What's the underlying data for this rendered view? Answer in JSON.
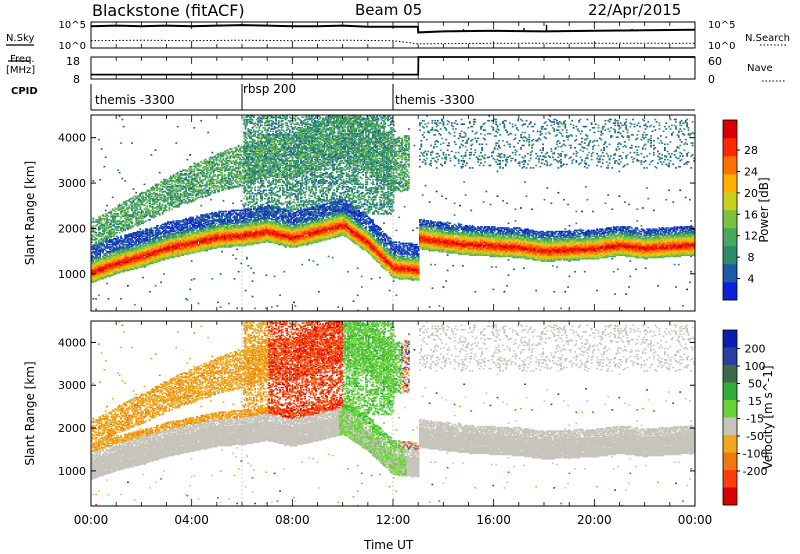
{
  "header": {
    "title": "Blackstone (fitACF)",
    "beam": "Beam 05",
    "date": "22/Apr/2015"
  },
  "left_labels": {
    "nsky": "N.Sky",
    "freq_line1": "Freq.",
    "freq_line2": "[MHz]",
    "cpid": "CPID"
  },
  "right_labels": {
    "nsearch": "N.Search",
    "nave": "Nave"
  },
  "colors": {
    "power_scale": [
      "#1020d8",
      "#1e58a8",
      "#2a8a6a",
      "#48a860",
      "#7cc040",
      "#c8d020",
      "#ffb000",
      "#ff7000",
      "#ff2800",
      "#d80000"
    ],
    "velocity_scale": [
      "#0a1fb0",
      "#2a3fa0",
      "#3c6a48",
      "#2fae3c",
      "#6ad23a",
      "#c7c4bc",
      "#f0a818",
      "#f07810",
      "#ff3c0c",
      "#d80000"
    ],
    "noise_sky_line": "#000000"
  },
  "chart_data": [
    {
      "type": "line",
      "panel": "noise",
      "ytick_labels_left": [
        "10^5",
        "10^0"
      ],
      "ytick_labels_right": [
        "10^5",
        "10^0"
      ],
      "series": [
        {
          "name": "N.Sky",
          "x": [
            0,
            1,
            2,
            3,
            4,
            5,
            6,
            7,
            8,
            9,
            10,
            11,
            12,
            12.99,
            13,
            14,
            16,
            18,
            20,
            22,
            24
          ],
          "values": [
            4.2,
            4.3,
            4.2,
            4.3,
            4.2,
            4.3,
            4.4,
            4.3,
            4.2,
            4.2,
            4.3,
            4.1,
            4.1,
            4.1,
            3.0,
            3.2,
            3.3,
            3.2,
            3.3,
            3.4,
            3.5
          ]
        },
        {
          "name": "N.Search",
          "x": [
            0,
            2,
            4,
            6,
            8,
            10,
            12,
            13,
            16,
            20,
            24
          ],
          "values": [
            1.4,
            1.5,
            1.4,
            1.5,
            1.4,
            1.5,
            1.4,
            0.8,
            0.9,
            0.9,
            0.9
          ]
        }
      ]
    },
    {
      "type": "line",
      "panel": "freq_nave",
      "ytick_labels_left": [
        "18",
        "8"
      ],
      "ytick_labels_right": [
        "60",
        "0"
      ],
      "series": [
        {
          "name": "Freq.",
          "x": [
            0,
            13,
            13.01,
            24
          ],
          "values": [
            10,
            10,
            18,
            18
          ]
        },
        {
          "name": "Nave",
          "x": [
            0,
            24
          ],
          "values": [
            0,
            0
          ]
        }
      ]
    },
    {
      "type": "table",
      "panel": "cpid",
      "segments": [
        {
          "label": "themis -3300",
          "start": 0,
          "end": 6
        },
        {
          "label": "rbsp 200",
          "start": 6,
          "end": 12
        },
        {
          "label": "themis -3300",
          "start": 12,
          "end": 24
        }
      ]
    },
    {
      "type": "heatmap",
      "panel": "power",
      "ylabel": "Slant Range [km]",
      "colorbar_label": "Power [dB]",
      "colorbar_ticks": [
        "4",
        "8",
        "12",
        "16",
        "20",
        "24",
        "28"
      ],
      "ylim": [
        180,
        4500
      ],
      "yticks": [
        1000,
        2000,
        3000,
        4000
      ],
      "ridge": {
        "x": [
          0,
          1,
          2,
          3,
          4,
          5,
          6,
          7,
          8,
          9,
          10,
          11,
          12,
          12.99,
          13,
          14,
          15,
          16,
          17,
          18,
          19,
          20,
          21,
          22,
          23,
          24
        ],
        "values": [
          950,
          1150,
          1300,
          1480,
          1600,
          1720,
          1760,
          1850,
          1720,
          1850,
          2000,
          1600,
          1050,
          1000,
          1700,
          1620,
          1560,
          1530,
          1500,
          1420,
          1450,
          1470,
          1550,
          1480,
          1520,
          1560
        ]
      }
    },
    {
      "type": "heatmap",
      "panel": "velocity",
      "ylabel": "Slant Range [km]",
      "colorbar_label": "Velocity [m s^-1]",
      "colorbar_ticks": [
        "200",
        "100",
        "50",
        "15",
        "-15",
        "-50",
        "-100",
        "-200"
      ],
      "ylim": [
        180,
        4500
      ],
      "yticks": [
        1000,
        2000,
        3000,
        4000
      ]
    },
    {
      "type": "line",
      "panel": "time_axis",
      "xlabel": "Time UT",
      "xlim": [
        0,
        24
      ],
      "xticks": [
        "00:00",
        "04:00",
        "08:00",
        "12:00",
        "16:00",
        "20:00",
        "00:00"
      ]
    }
  ]
}
